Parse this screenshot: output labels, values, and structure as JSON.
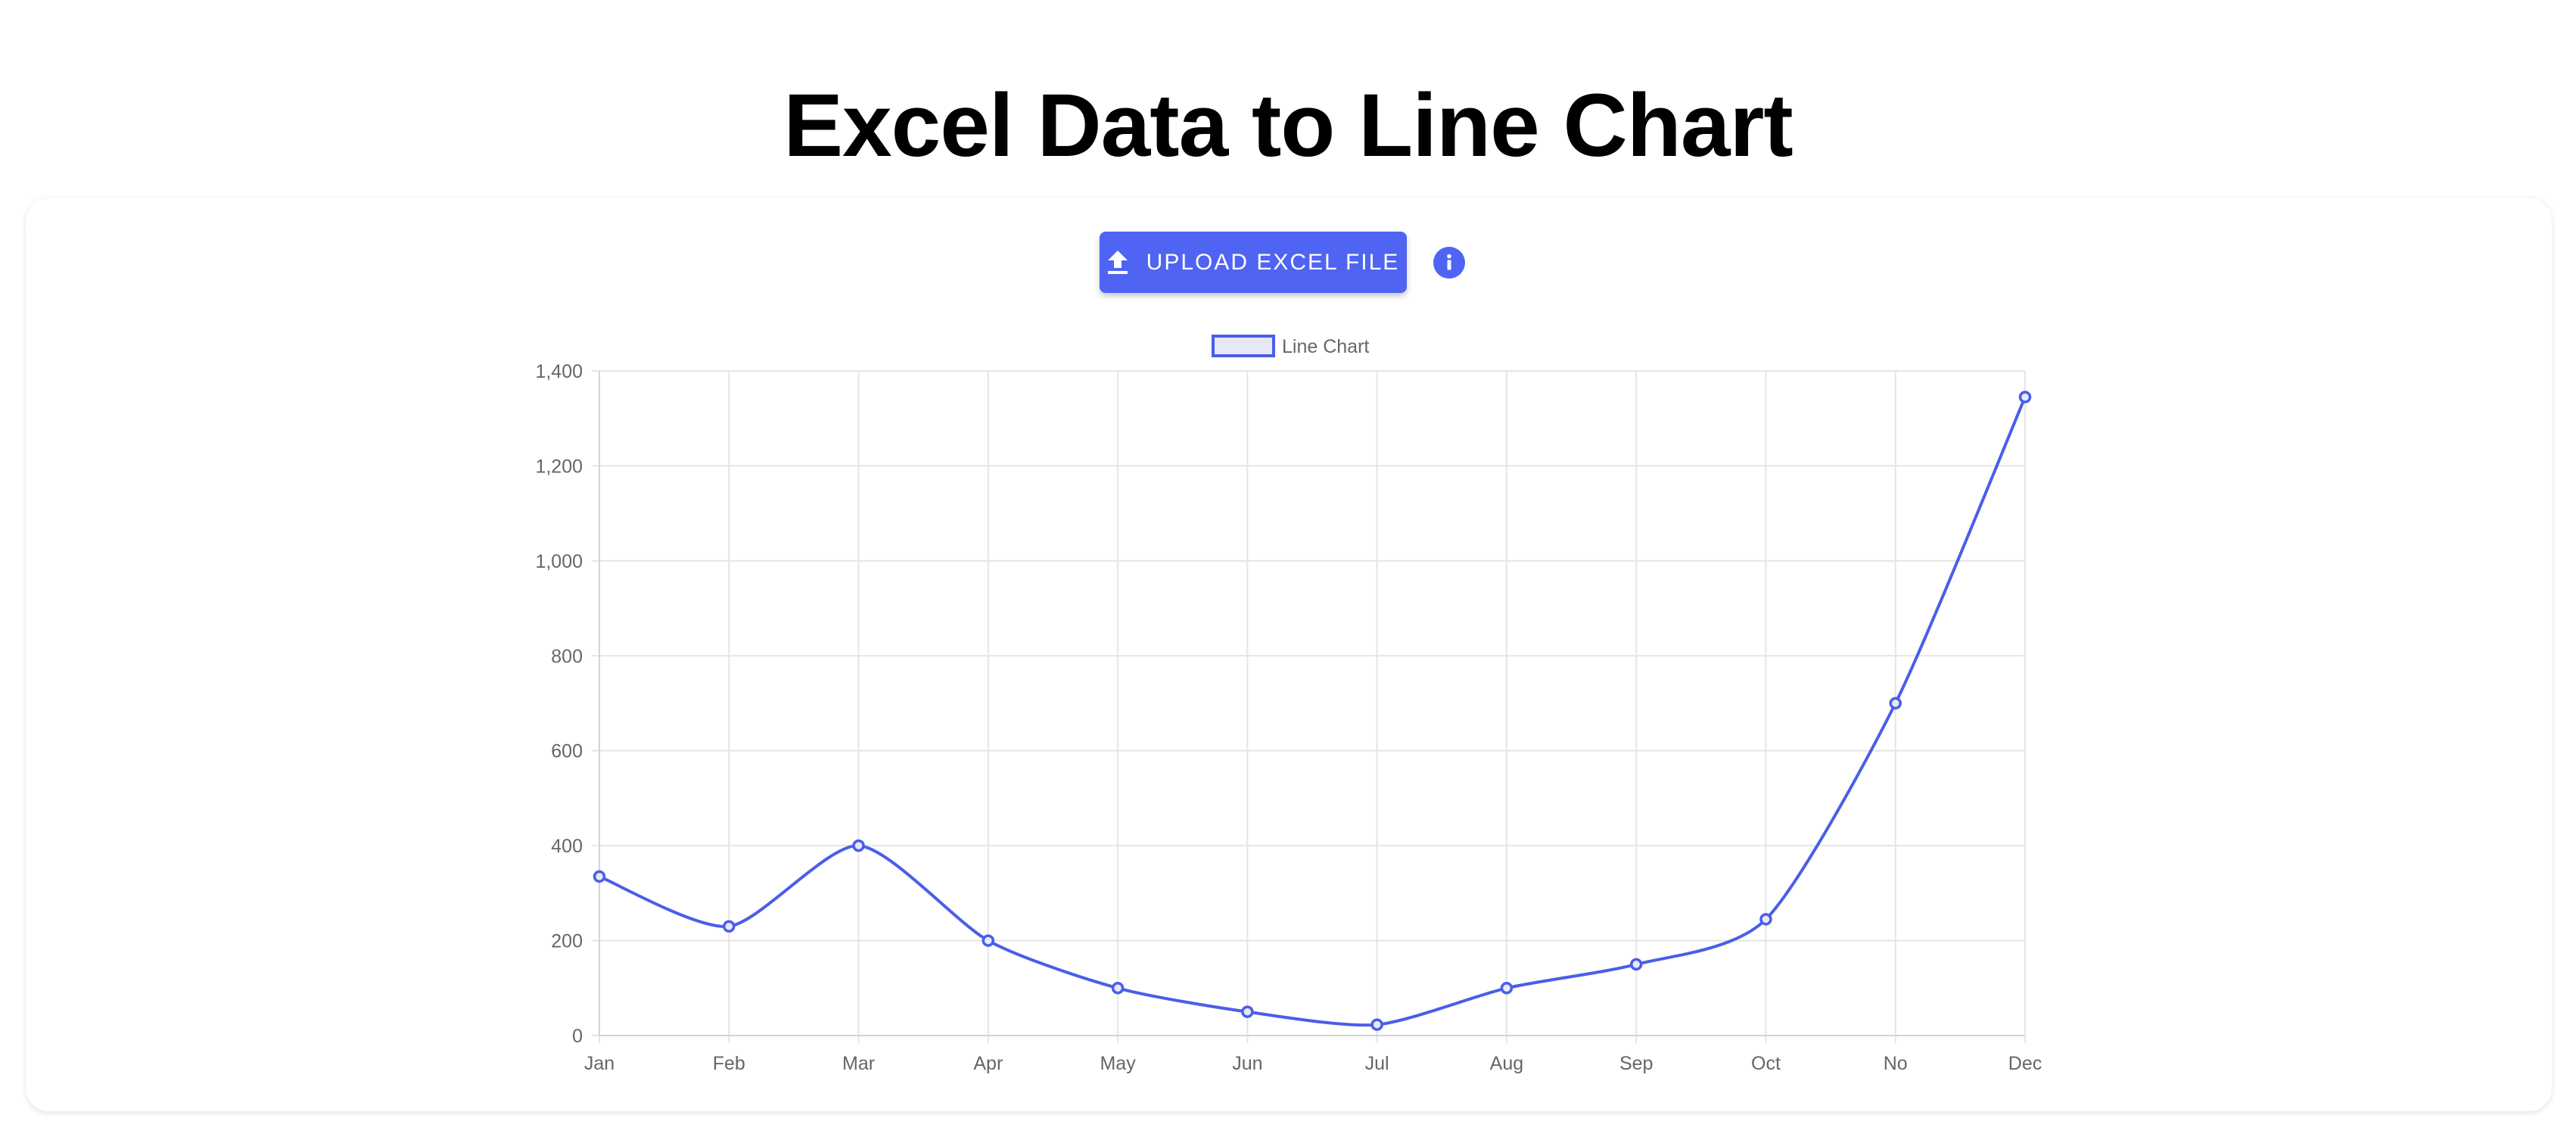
{
  "page": {
    "title": "Excel Data to Line Chart"
  },
  "toolbar": {
    "upload_label": "UPLOAD EXCEL FILE",
    "upload_icon": "upload-icon",
    "info_icon": "info-icon"
  },
  "colors": {
    "accent": "#4f64f2",
    "line": "#4a5ee8",
    "legend_fill": "#e6e8f6",
    "grid": "#e5e5e5",
    "tick_text": "#666666"
  },
  "chart_data": {
    "type": "line",
    "legend": {
      "position": "top-center",
      "entries": [
        "Line Chart"
      ]
    },
    "categories": [
      "Jan",
      "Feb",
      "Mar",
      "Apr",
      "May",
      "Jun",
      "Jul",
      "Aug",
      "Sep",
      "Oct",
      "No",
      "Dec"
    ],
    "series": [
      {
        "name": "Line Chart",
        "values": [
          335,
          230,
          400,
          200,
          100,
          50,
          23,
          100,
          150,
          245,
          700,
          1345
        ]
      }
    ],
    "ylim": [
      0,
      1400
    ],
    "yticks": [
      0,
      200,
      400,
      600,
      800,
      1000,
      1200,
      1400
    ],
    "ytick_labels": [
      "0",
      "200",
      "400",
      "600",
      "800",
      "1,000",
      "1,200",
      "1,400"
    ],
    "grid": true
  }
}
